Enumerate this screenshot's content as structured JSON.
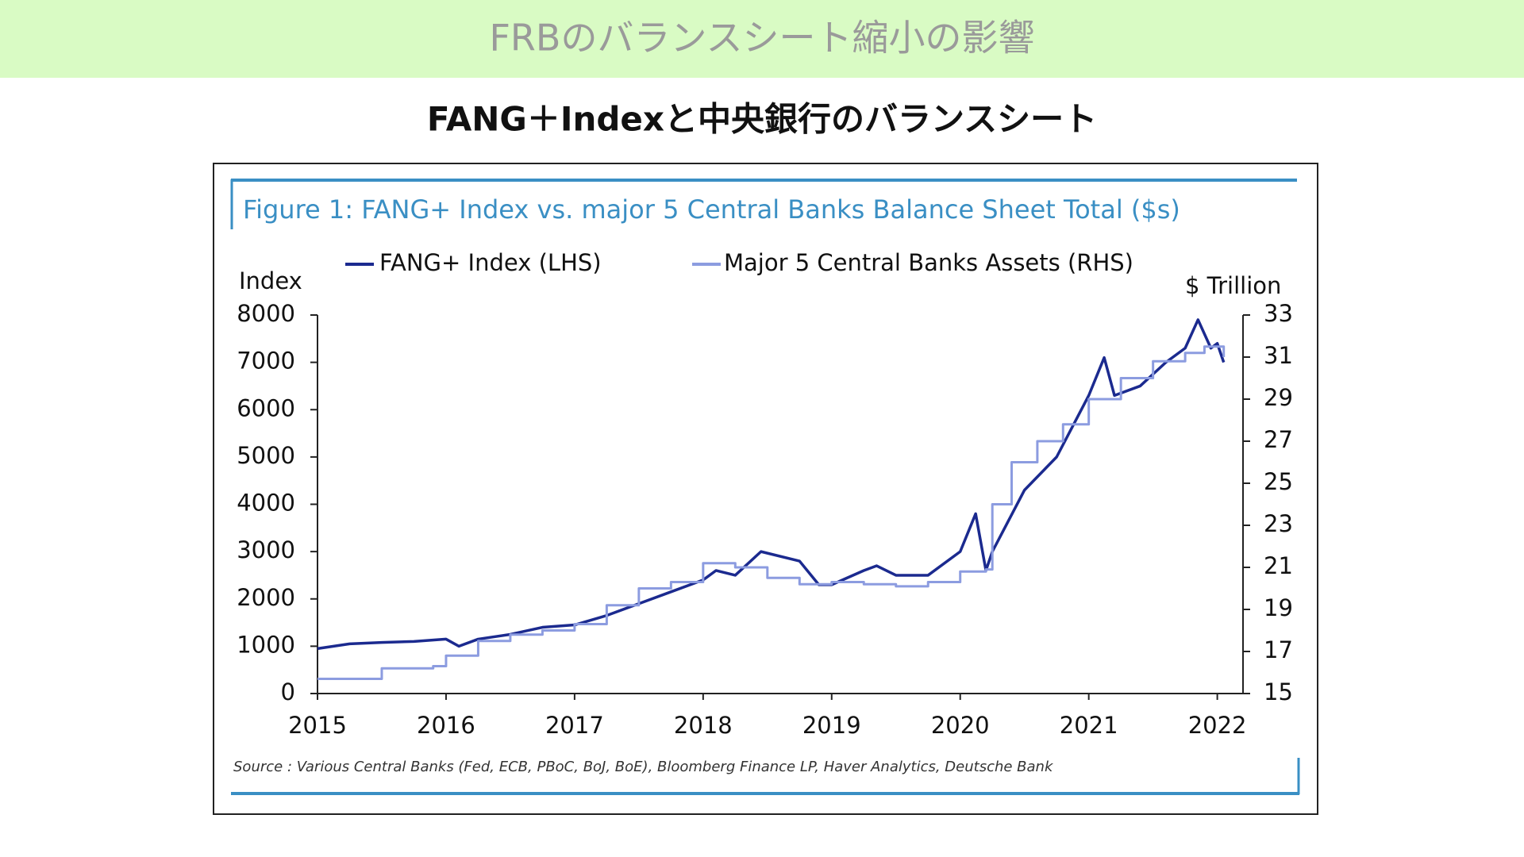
{
  "header": {
    "title": "FRBのバランスシート縮小の影響",
    "subtitle": "FANG＋Indexと中央銀行のバランスシート"
  },
  "chart_data": {
    "type": "line",
    "title": "Figure 1: FANG+ Index vs. major 5 Central Banks Balance Sheet Total ($s)",
    "y_label": "Index",
    "y2_label": "$ Trillion",
    "source": "Source : Various Central Banks (Fed, ECB, PBoC, BoJ, BoE), Bloomberg Finance LP, Haver Analytics, Deutsche Bank",
    "xlim": [
      2015,
      2022.2
    ],
    "xticks": [
      2015,
      2016,
      2017,
      2018,
      2019,
      2020,
      2021,
      2022
    ],
    "ylim": [
      0,
      8000
    ],
    "yticks": [
      0,
      1000,
      2000,
      3000,
      4000,
      5000,
      6000,
      7000,
      8000
    ],
    "y2lim": [
      15,
      33
    ],
    "y2ticks": [
      15,
      17,
      19,
      21,
      23,
      25,
      27,
      29,
      31,
      33
    ],
    "series": [
      {
        "name": "FANG+ Index (LHS)",
        "color": "#1b2a8f",
        "step": false,
        "x": [
          2015.0,
          2015.25,
          2015.5,
          2015.75,
          2016.0,
          2016.1,
          2016.25,
          2016.5,
          2016.75,
          2017.0,
          2017.25,
          2017.5,
          2017.75,
          2018.0,
          2018.1,
          2018.25,
          2018.45,
          2018.75,
          2018.9,
          2019.0,
          2019.25,
          2019.35,
          2019.5,
          2019.75,
          2020.0,
          2020.12,
          2020.2,
          2020.25,
          2020.5,
          2020.75,
          2021.0,
          2021.12,
          2021.2,
          2021.4,
          2021.6,
          2021.75,
          2021.85,
          2021.95,
          2022.0,
          2022.05
        ],
        "values": [
          950,
          1050,
          1080,
          1100,
          1150,
          1000,
          1150,
          1250,
          1400,
          1450,
          1650,
          1900,
          2150,
          2400,
          2600,
          2500,
          3000,
          2800,
          2300,
          2300,
          2600,
          2700,
          2500,
          2500,
          3000,
          3800,
          2600,
          3000,
          4300,
          5000,
          6300,
          7100,
          6300,
          6500,
          7000,
          7300,
          7900,
          7300,
          7400,
          7000
        ]
      },
      {
        "name": "Major 5 Central Banks Assets (RHS)",
        "color": "#8c9ce0",
        "step": true,
        "axis": "y2",
        "x": [
          2015.0,
          2015.5,
          2015.9,
          2016.0,
          2016.25,
          2016.5,
          2016.75,
          2017.0,
          2017.25,
          2017.5,
          2017.75,
          2018.0,
          2018.25,
          2018.5,
          2018.75,
          2019.0,
          2019.25,
          2019.5,
          2019.75,
          2020.0,
          2020.2,
          2020.25,
          2020.4,
          2020.6,
          2020.8,
          2021.0,
          2021.25,
          2021.5,
          2021.75,
          2021.9,
          2022.0,
          2022.05
        ],
        "values": [
          15.7,
          16.2,
          16.3,
          16.8,
          17.5,
          17.8,
          18.0,
          18.3,
          19.2,
          20.0,
          20.3,
          21.2,
          21.0,
          20.5,
          20.2,
          20.3,
          20.2,
          20.1,
          20.3,
          20.8,
          20.9,
          24.0,
          26.0,
          27.0,
          27.8,
          29.0,
          30.0,
          30.8,
          31.2,
          31.5,
          31.5,
          31.0
        ]
      }
    ]
  }
}
